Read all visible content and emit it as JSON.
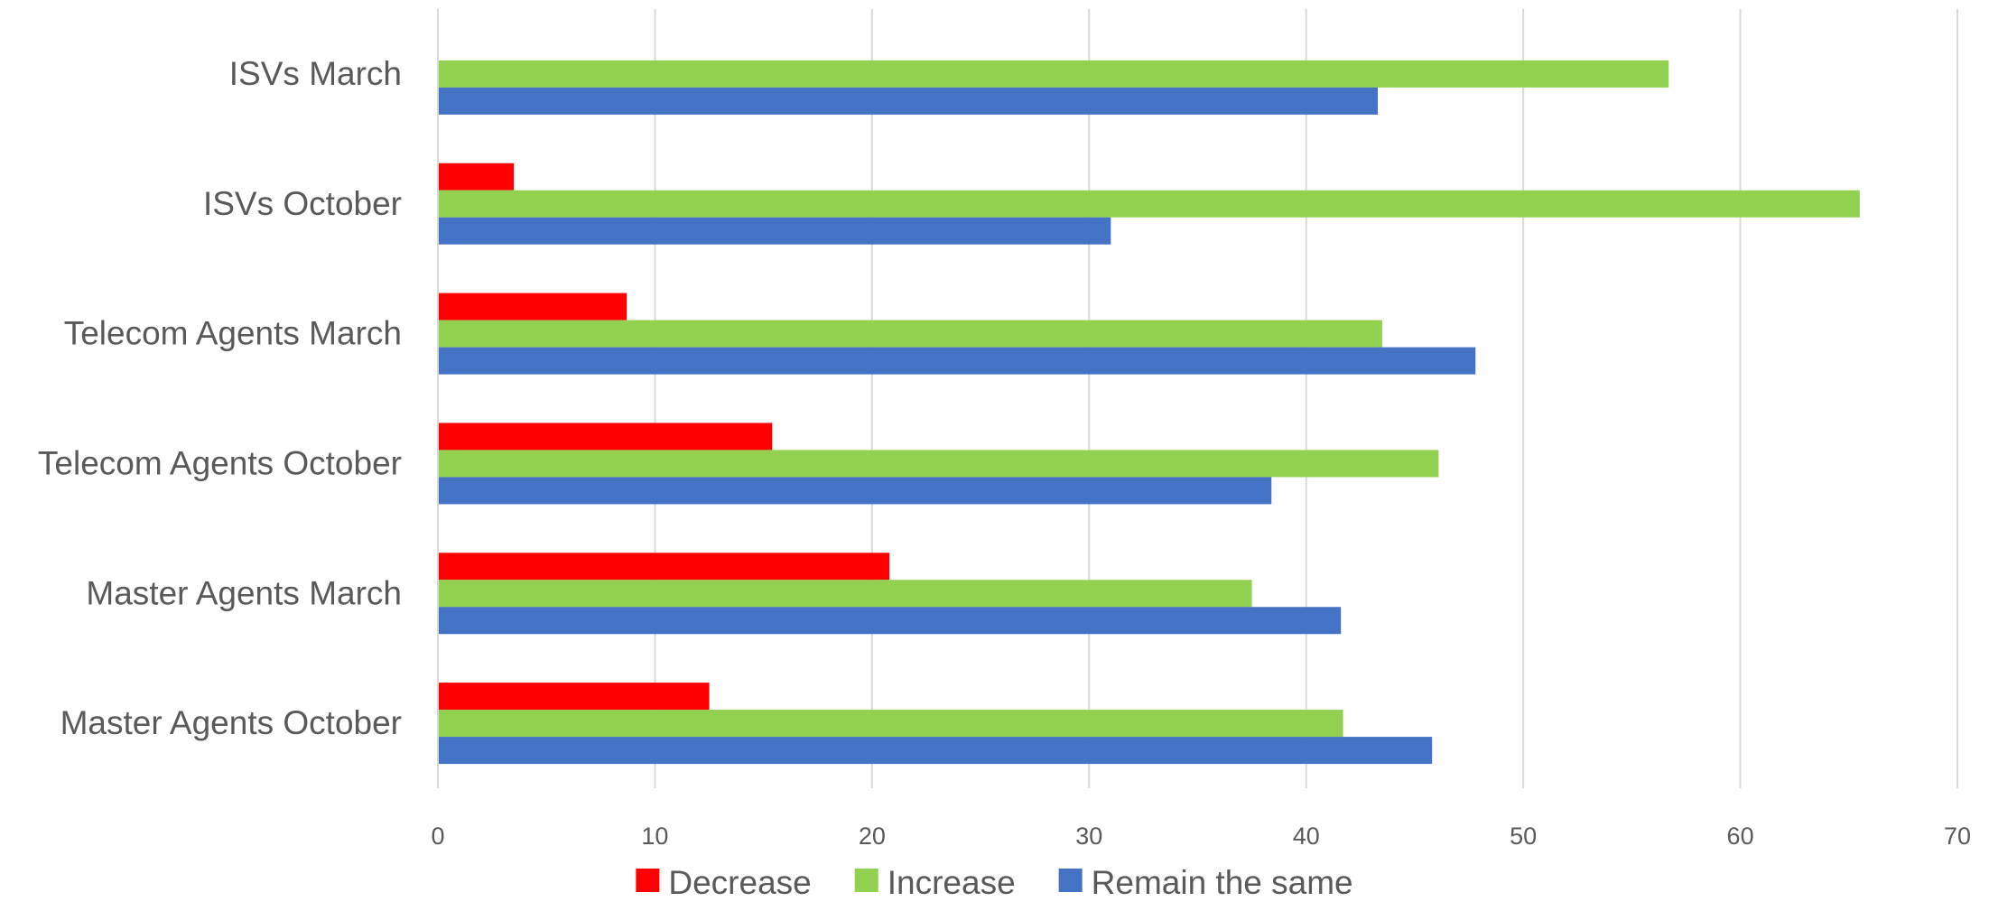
{
  "chart_data": {
    "type": "bar",
    "orientation": "horizontal",
    "title": "",
    "xlabel": "",
    "ylabel": "",
    "categories": [
      "ISVs March",
      "ISVs October",
      "Telecom Agents March",
      "Telecom Agents October",
      "Master Agents March",
      "Master Agents October"
    ],
    "series": [
      {
        "name": "Decrease",
        "color": "#ff0000",
        "values": [
          0,
          3.5,
          8.7,
          15.4,
          20.8,
          12.5
        ]
      },
      {
        "name": "Increase",
        "color": "#92d050",
        "values": [
          56.7,
          65.5,
          43.5,
          46.1,
          37.5,
          41.7
        ]
      },
      {
        "name": "Remain the same",
        "color": "#4472c4",
        "values": [
          43.3,
          31.0,
          47.8,
          38.4,
          41.6,
          45.8
        ]
      }
    ],
    "xlim": [
      0,
      70
    ],
    "xticks": [
      0,
      10,
      20,
      30,
      40,
      50,
      60,
      70
    ],
    "grid": "vertical",
    "legend": "bottom-center"
  }
}
